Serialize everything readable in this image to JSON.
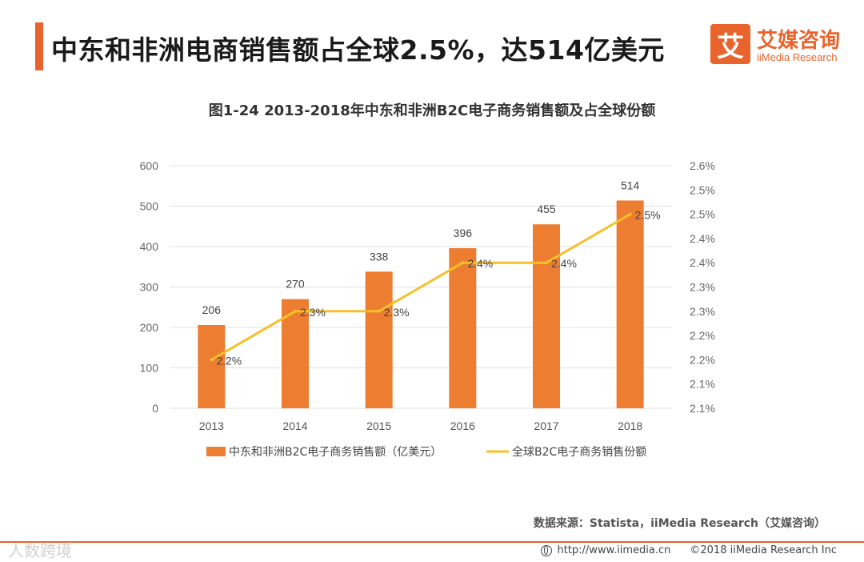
{
  "header": {
    "title": "中东和非洲电商销售额占全球2.5%，达514亿美元"
  },
  "logo": {
    "mark": "艾",
    "name": "艾媒咨询",
    "english": "iiMedia Research"
  },
  "chart_data": {
    "type": "bar+line",
    "title": "图1-24  2013-2018年中东和非洲B2C电子商务销售额及占全球份额",
    "categories": [
      "2013",
      "2014",
      "2015",
      "2016",
      "2017",
      "2018"
    ],
    "series": [
      {
        "name": "中东和非洲B2C电子商务销售额（亿美元）",
        "type": "bar",
        "axis": "left",
        "values": [
          206,
          270,
          338,
          396,
          455,
          514
        ],
        "labels": [
          "206",
          "270",
          "338",
          "396",
          "455",
          "514"
        ],
        "color": "#ed7d31"
      },
      {
        "name": "全球B2C电子商务销售份额",
        "type": "line",
        "axis": "right",
        "values": [
          2.2,
          2.3,
          2.3,
          2.4,
          2.4,
          2.5
        ],
        "labels": [
          "2.2%",
          "2.3%",
          "2.3%",
          "2.4%",
          "2.4%",
          "2.5%"
        ],
        "color": "#f5c02a"
      }
    ],
    "y_left": {
      "ylim": [
        0,
        600
      ],
      "ticks": [
        "0",
        "100",
        "200",
        "300",
        "400",
        "500",
        "600"
      ]
    },
    "y_right": {
      "ylim": [
        2.1,
        2.6
      ],
      "ticks": [
        "2.1%",
        "2.1%",
        "2.2%",
        "2.2%",
        "2.3%",
        "2.3%",
        "2.4%",
        "2.4%",
        "2.5%",
        "2.5%",
        "2.6%"
      ]
    },
    "legend_position": "bottom",
    "grid": true
  },
  "source": "数据来源：Statista，iiMedia Research（艾媒咨询）",
  "footer": {
    "url": "http://www.iimedia.cn",
    "copyright": "©2018  iiMedia Research Inc"
  },
  "watermark": "人数跨境",
  "colors": {
    "accent": "#e8642c",
    "bar": "#ed7d31",
    "line": "#f5c02a",
    "grid": "#e0e0e0"
  }
}
